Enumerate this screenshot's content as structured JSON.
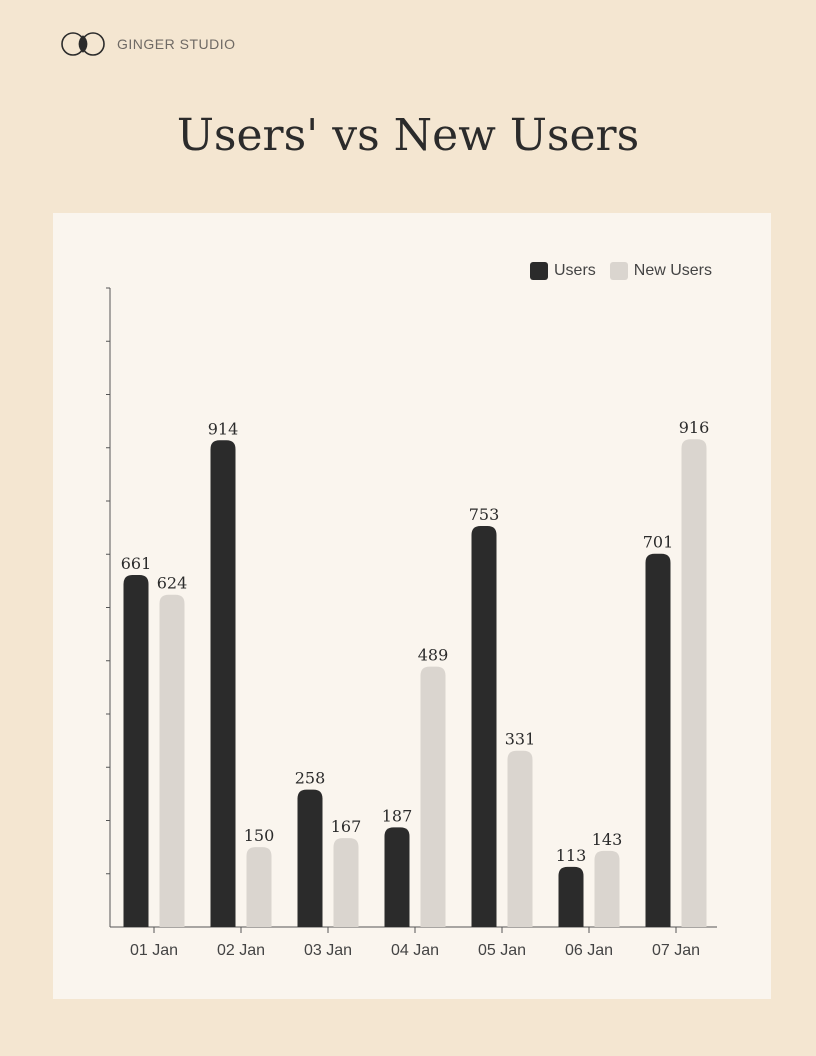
{
  "brand": {
    "name": "GINGER STUDIO"
  },
  "colors": {
    "users": "#2b2b2b",
    "new_users": "#dad5cf",
    "background": "#f4e6d1",
    "panel": "#faf5ee"
  },
  "chart_data": {
    "type": "bar",
    "title": "Users' vs New Users",
    "xlabel": "",
    "ylabel": "",
    "categories": [
      "01 Jan",
      "02 Jan",
      "03 Jan",
      "04 Jan",
      "05 Jan",
      "06 Jan",
      "07 Jan"
    ],
    "series": [
      {
        "name": "Users",
        "values": [
          661,
          914,
          258,
          187,
          753,
          113,
          701
        ]
      },
      {
        "name": "New Users",
        "values": [
          624,
          150,
          167,
          489,
          331,
          143,
          916
        ]
      }
    ],
    "ylim": [
      0,
      1200
    ],
    "legend": "top-right",
    "data_labels": true,
    "grid": false
  }
}
